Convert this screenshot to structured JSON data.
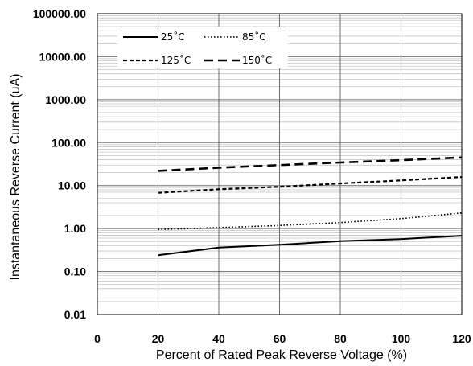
{
  "chart_data": {
    "type": "line",
    "title": "",
    "xlabel": "Percent of  Rated Peak Reverse Voltage (%)",
    "ylabel": "Instantaneous Reverse Current (uA)",
    "xlim": [
      0,
      120
    ],
    "ylim": [
      0.01,
      100000
    ],
    "y_scale": "log",
    "grid": true,
    "legend_position": "top-left",
    "x_ticks": [
      "0",
      "20",
      "40",
      "60",
      "80",
      "100",
      "120"
    ],
    "y_ticks": [
      "0.01",
      "0.10",
      "1.00",
      "10.00",
      "100.00",
      "1000.00",
      "10000.00",
      "100000.00"
    ],
    "x": [
      20,
      40,
      60,
      80,
      100,
      120
    ],
    "series": [
      {
        "name": "25˚C",
        "values": [
          0.24,
          0.36,
          0.42,
          0.51,
          0.57,
          0.68
        ],
        "style": "solid"
      },
      {
        "name": "85˚C",
        "values": [
          0.95,
          1.05,
          1.18,
          1.38,
          1.7,
          2.3
        ],
        "style": "dotted"
      },
      {
        "name": "125˚C",
        "values": [
          6.8,
          8.2,
          9.4,
          11.2,
          13.2,
          15.8
        ],
        "style": "dashed"
      },
      {
        "name": "150˚C",
        "values": [
          22,
          26,
          30,
          34.5,
          39,
          45
        ],
        "style": "long-dashed"
      }
    ]
  }
}
